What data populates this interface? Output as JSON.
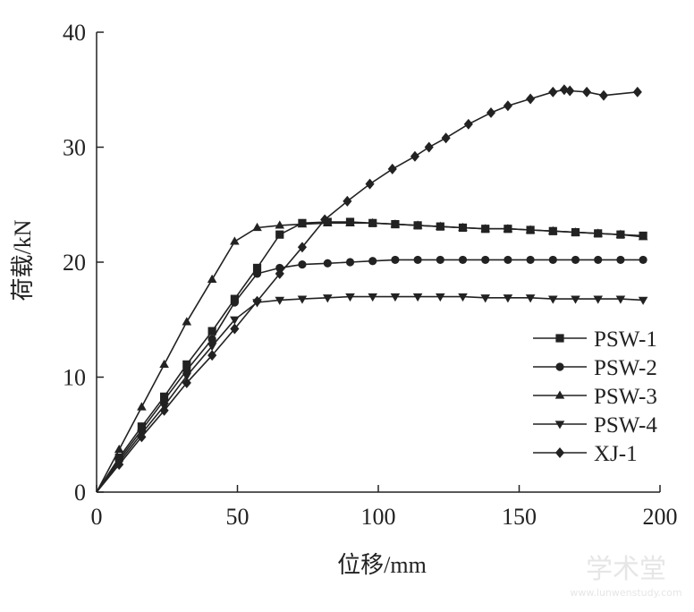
{
  "chart_data": {
    "type": "line",
    "xlabel": "位移/mm",
    "ylabel": "荷载/kN",
    "xlim": [
      0,
      200
    ],
    "ylim": [
      0,
      40
    ],
    "x_ticks": [
      "0",
      "50",
      "100",
      "150",
      "200"
    ],
    "y_ticks": [
      "0",
      "10",
      "20",
      "30",
      "40"
    ],
    "grid": false,
    "legend_position": "bottom-right",
    "series": [
      {
        "name": "PSW-1",
        "marker": "square",
        "points": [
          [
            0,
            0
          ],
          [
            8,
            3.0
          ],
          [
            16,
            5.7
          ],
          [
            24,
            8.3
          ],
          [
            32,
            11.1
          ],
          [
            41,
            14.0
          ],
          [
            49,
            16.8
          ],
          [
            57,
            19.5
          ],
          [
            65,
            22.4
          ],
          [
            73,
            23.4
          ],
          [
            82,
            23.5
          ],
          [
            90,
            23.5
          ],
          [
            98,
            23.4
          ],
          [
            106,
            23.3
          ],
          [
            114,
            23.2
          ],
          [
            122,
            23.1
          ],
          [
            130,
            23.0
          ],
          [
            138,
            22.9
          ],
          [
            146,
            22.9
          ],
          [
            154,
            22.8
          ],
          [
            162,
            22.7
          ],
          [
            170,
            22.6
          ],
          [
            178,
            22.5
          ],
          [
            186,
            22.4
          ],
          [
            194,
            22.3
          ]
        ]
      },
      {
        "name": "PSW-2",
        "marker": "circle",
        "points": [
          [
            0,
            0
          ],
          [
            8,
            2.8
          ],
          [
            16,
            5.4
          ],
          [
            24,
            8.0
          ],
          [
            32,
            10.6
          ],
          [
            41,
            13.3
          ],
          [
            49,
            16.5
          ],
          [
            57,
            19.0
          ],
          [
            65,
            19.5
          ],
          [
            73,
            19.8
          ],
          [
            82,
            19.9
          ],
          [
            90,
            20.0
          ],
          [
            98,
            20.1
          ],
          [
            106,
            20.2
          ],
          [
            114,
            20.2
          ],
          [
            122,
            20.2
          ],
          [
            130,
            20.2
          ],
          [
            138,
            20.2
          ],
          [
            146,
            20.2
          ],
          [
            154,
            20.2
          ],
          [
            162,
            20.2
          ],
          [
            170,
            20.2
          ],
          [
            178,
            20.2
          ],
          [
            186,
            20.2
          ],
          [
            194,
            20.2
          ]
        ]
      },
      {
        "name": "PSW-3",
        "marker": "triangle-up",
        "points": [
          [
            0,
            0
          ],
          [
            8,
            3.7
          ],
          [
            16,
            7.4
          ],
          [
            24,
            11.1
          ],
          [
            32,
            14.8
          ],
          [
            41,
            18.5
          ],
          [
            49,
            21.8
          ],
          [
            57,
            23.0
          ],
          [
            65,
            23.2
          ],
          [
            73,
            23.3
          ],
          [
            82,
            23.4
          ],
          [
            90,
            23.4
          ],
          [
            98,
            23.4
          ],
          [
            106,
            23.3
          ],
          [
            114,
            23.2
          ],
          [
            122,
            23.1
          ],
          [
            130,
            23.0
          ],
          [
            138,
            22.9
          ],
          [
            146,
            22.9
          ],
          [
            154,
            22.8
          ],
          [
            162,
            22.7
          ],
          [
            170,
            22.6
          ],
          [
            178,
            22.5
          ],
          [
            186,
            22.4
          ],
          [
            194,
            22.2
          ]
        ]
      },
      {
        "name": "PSW-4",
        "marker": "triangle-down",
        "points": [
          [
            0,
            0
          ],
          [
            8,
            2.6
          ],
          [
            16,
            5.1
          ],
          [
            24,
            7.5
          ],
          [
            32,
            10.1
          ],
          [
            41,
            12.7
          ],
          [
            49,
            15.0
          ],
          [
            57,
            16.5
          ],
          [
            65,
            16.7
          ],
          [
            73,
            16.8
          ],
          [
            82,
            16.9
          ],
          [
            90,
            17.0
          ],
          [
            98,
            17.0
          ],
          [
            106,
            17.0
          ],
          [
            114,
            17.0
          ],
          [
            122,
            17.0
          ],
          [
            130,
            17.0
          ],
          [
            138,
            16.9
          ],
          [
            146,
            16.9
          ],
          [
            154,
            16.9
          ],
          [
            162,
            16.8
          ],
          [
            170,
            16.8
          ],
          [
            178,
            16.8
          ],
          [
            186,
            16.8
          ],
          [
            194,
            16.7
          ]
        ]
      },
      {
        "name": "XJ-1",
        "marker": "diamond",
        "points": [
          [
            0,
            0
          ],
          [
            8,
            2.4
          ],
          [
            16,
            4.8
          ],
          [
            24,
            7.1
          ],
          [
            32,
            9.5
          ],
          [
            41,
            11.9
          ],
          [
            49,
            14.2
          ],
          [
            57,
            16.6
          ],
          [
            65,
            19.0
          ],
          [
            73,
            21.3
          ],
          [
            81,
            23.7
          ],
          [
            89,
            25.3
          ],
          [
            97,
            26.8
          ],
          [
            105,
            28.1
          ],
          [
            113,
            29.2
          ],
          [
            118,
            30.0
          ],
          [
            124,
            30.8
          ],
          [
            132,
            32.0
          ],
          [
            140,
            33.0
          ],
          [
            146,
            33.6
          ],
          [
            154,
            34.2
          ],
          [
            162,
            34.8
          ],
          [
            166,
            35.0
          ],
          [
            168,
            34.9
          ],
          [
            174,
            34.8
          ],
          [
            180,
            34.5
          ],
          [
            192,
            34.8
          ]
        ]
      }
    ]
  },
  "watermark": {
    "text": "学术堂",
    "subtext": "www.lunwenstudy.com"
  }
}
